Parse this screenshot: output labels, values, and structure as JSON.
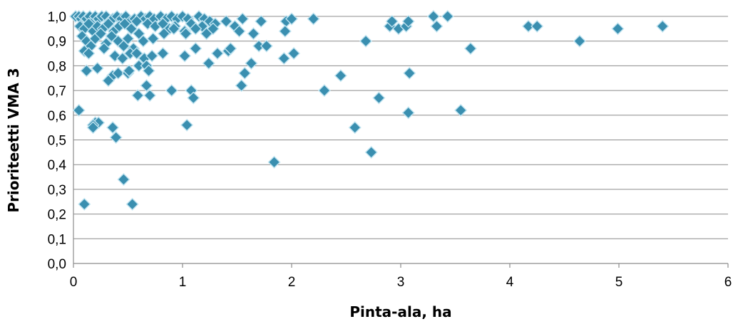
{
  "chart_data": {
    "type": "scatter",
    "title": "",
    "xlabel": "Pinta-ala, ha",
    "ylabel": "Prioriteetti VMA 3",
    "xlim": [
      0,
      6
    ],
    "ylim": [
      0,
      1
    ],
    "x_ticks": [
      "0",
      "1",
      "2",
      "3",
      "4",
      "5",
      "6"
    ],
    "y_ticks": [
      "0,0",
      "0,1",
      "0,2",
      "0,3",
      "0,4",
      "0,5",
      "0,6",
      "0,7",
      "0,8",
      "0,9",
      "1,0"
    ],
    "grid": "horizontal",
    "legend": "none",
    "marker": "diamond",
    "color": "#3a8fb0",
    "edge_color": "#bfe3f0",
    "points": [
      [
        0.02,
        1.0
      ],
      [
        0.05,
        1.0
      ],
      [
        0.07,
        0.99
      ],
      [
        0.09,
        1.0
      ],
      [
        0.12,
        0.99
      ],
      [
        0.15,
        1.0
      ],
      [
        0.18,
        0.98
      ],
      [
        0.2,
        1.0
      ],
      [
        0.23,
        0.99
      ],
      [
        0.26,
        1.0
      ],
      [
        0.3,
        1.0
      ],
      [
        0.33,
        0.98
      ],
      [
        0.36,
        0.99
      ],
      [
        0.4,
        1.0
      ],
      [
        0.44,
        0.99
      ],
      [
        0.48,
        1.0
      ],
      [
        0.52,
        0.98
      ],
      [
        0.56,
        0.99
      ],
      [
        0.62,
        1.0
      ],
      [
        0.66,
        0.99
      ],
      [
        0.7,
        1.0
      ],
      [
        0.74,
        0.99
      ],
      [
        0.8,
        1.0
      ],
      [
        0.85,
        0.99
      ],
      [
        0.9,
        1.0
      ],
      [
        0.95,
        0.99
      ],
      [
        1.0,
        1.0
      ],
      [
        1.05,
        0.99
      ],
      [
        1.15,
        1.0
      ],
      [
        1.2,
        0.99
      ],
      [
        1.25,
        0.98
      ],
      [
        0.06,
        0.96
      ],
      [
        0.1,
        0.95
      ],
      [
        0.14,
        0.97
      ],
      [
        0.18,
        0.94
      ],
      [
        0.22,
        0.96
      ],
      [
        0.27,
        0.95
      ],
      [
        0.32,
        0.97
      ],
      [
        0.37,
        0.94
      ],
      [
        0.42,
        0.96
      ],
      [
        0.47,
        0.97
      ],
      [
        0.53,
        0.95
      ],
      [
        0.58,
        0.98
      ],
      [
        0.68,
        0.97
      ],
      [
        0.75,
        0.96
      ],
      [
        0.82,
        0.97
      ],
      [
        0.88,
        0.95
      ],
      [
        0.93,
        0.96
      ],
      [
        1.02,
        0.94
      ],
      [
        1.08,
        0.97
      ],
      [
        1.18,
        0.96
      ],
      [
        1.22,
        0.93
      ],
      [
        1.3,
        0.97
      ],
      [
        1.4,
        0.98
      ],
      [
        1.48,
        0.96
      ],
      [
        1.55,
        0.99
      ],
      [
        1.72,
        0.98
      ],
      [
        1.95,
        0.98
      ],
      [
        2.0,
        0.99
      ],
      [
        0.08,
        0.92
      ],
      [
        0.12,
        0.9
      ],
      [
        0.16,
        0.88
      ],
      [
        0.2,
        0.91
      ],
      [
        0.25,
        0.93
      ],
      [
        0.3,
        0.89
      ],
      [
        0.35,
        0.92
      ],
      [
        0.41,
        0.9
      ],
      [
        0.46,
        0.88
      ],
      [
        0.5,
        0.91
      ],
      [
        0.55,
        0.87
      ],
      [
        0.6,
        0.93
      ],
      [
        0.64,
        0.9
      ],
      [
        0.73,
        0.91
      ],
      [
        0.83,
        0.93
      ],
      [
        0.92,
        0.95
      ],
      [
        1.03,
        0.93
      ],
      [
        1.12,
        0.95
      ],
      [
        1.28,
        0.95
      ],
      [
        1.52,
        0.94
      ],
      [
        1.65,
        0.93
      ],
      [
        1.94,
        0.94
      ],
      [
        0.1,
        0.86
      ],
      [
        0.14,
        0.85
      ],
      [
        0.28,
        0.87
      ],
      [
        0.38,
        0.84
      ],
      [
        0.45,
        0.83
      ],
      [
        0.52,
        0.85
      ],
      [
        0.58,
        0.85
      ],
      [
        0.65,
        0.83
      ],
      [
        0.72,
        0.84
      ],
      [
        0.82,
        0.85
      ],
      [
        1.12,
        0.87
      ],
      [
        1.02,
        0.84
      ],
      [
        1.32,
        0.85
      ],
      [
        1.42,
        0.86
      ],
      [
        1.44,
        0.87
      ],
      [
        1.7,
        0.88
      ],
      [
        1.77,
        0.88
      ],
      [
        1.93,
        0.83
      ],
      [
        2.02,
        0.85
      ],
      [
        0.12,
        0.78
      ],
      [
        0.22,
        0.79
      ],
      [
        0.36,
        0.76
      ],
      [
        0.41,
        0.77
      ],
      [
        0.5,
        0.77
      ],
      [
        0.51,
        0.78
      ],
      [
        0.6,
        0.8
      ],
      [
        0.67,
        0.8
      ],
      [
        0.69,
        0.78
      ],
      [
        1.24,
        0.81
      ],
      [
        1.57,
        0.77
      ],
      [
        1.63,
        0.81
      ],
      [
        0.32,
        0.74
      ],
      [
        0.67,
        0.72
      ],
      [
        1.54,
        0.72
      ],
      [
        0.9,
        0.7
      ],
      [
        1.08,
        0.7
      ],
      [
        1.1,
        0.67
      ],
      [
        0.7,
        0.68
      ],
      [
        0.59,
        0.68
      ],
      [
        0.05,
        0.62
      ],
      [
        0.2,
        0.57
      ],
      [
        0.23,
        0.57
      ],
      [
        0.18,
        0.56
      ],
      [
        0.18,
        0.55
      ],
      [
        0.36,
        0.55
      ],
      [
        0.39,
        0.51
      ],
      [
        1.04,
        0.56
      ],
      [
        0.46,
        0.34
      ],
      [
        0.1,
        0.24
      ],
      [
        0.54,
        0.24
      ],
      [
        1.84,
        0.41
      ],
      [
        2.2,
        0.99
      ],
      [
        2.3,
        0.7
      ],
      [
        2.45,
        0.76
      ],
      [
        2.58,
        0.55
      ],
      [
        2.68,
        0.9
      ],
      [
        2.73,
        0.45
      ],
      [
        2.8,
        0.67
      ],
      [
        2.9,
        0.96
      ],
      [
        2.92,
        0.98
      ],
      [
        2.98,
        0.95
      ],
      [
        3.05,
        0.96
      ],
      [
        3.07,
        0.98
      ],
      [
        3.08,
        0.77
      ],
      [
        3.07,
        0.61
      ],
      [
        3.3,
        1.0
      ],
      [
        3.33,
        0.96
      ],
      [
        3.43,
        1.0
      ],
      [
        3.55,
        0.62
      ],
      [
        3.64,
        0.87
      ],
      [
        4.17,
        0.96
      ],
      [
        4.25,
        0.96
      ],
      [
        4.64,
        0.9
      ],
      [
        4.99,
        0.95
      ],
      [
        5.4,
        0.96
      ]
    ]
  }
}
